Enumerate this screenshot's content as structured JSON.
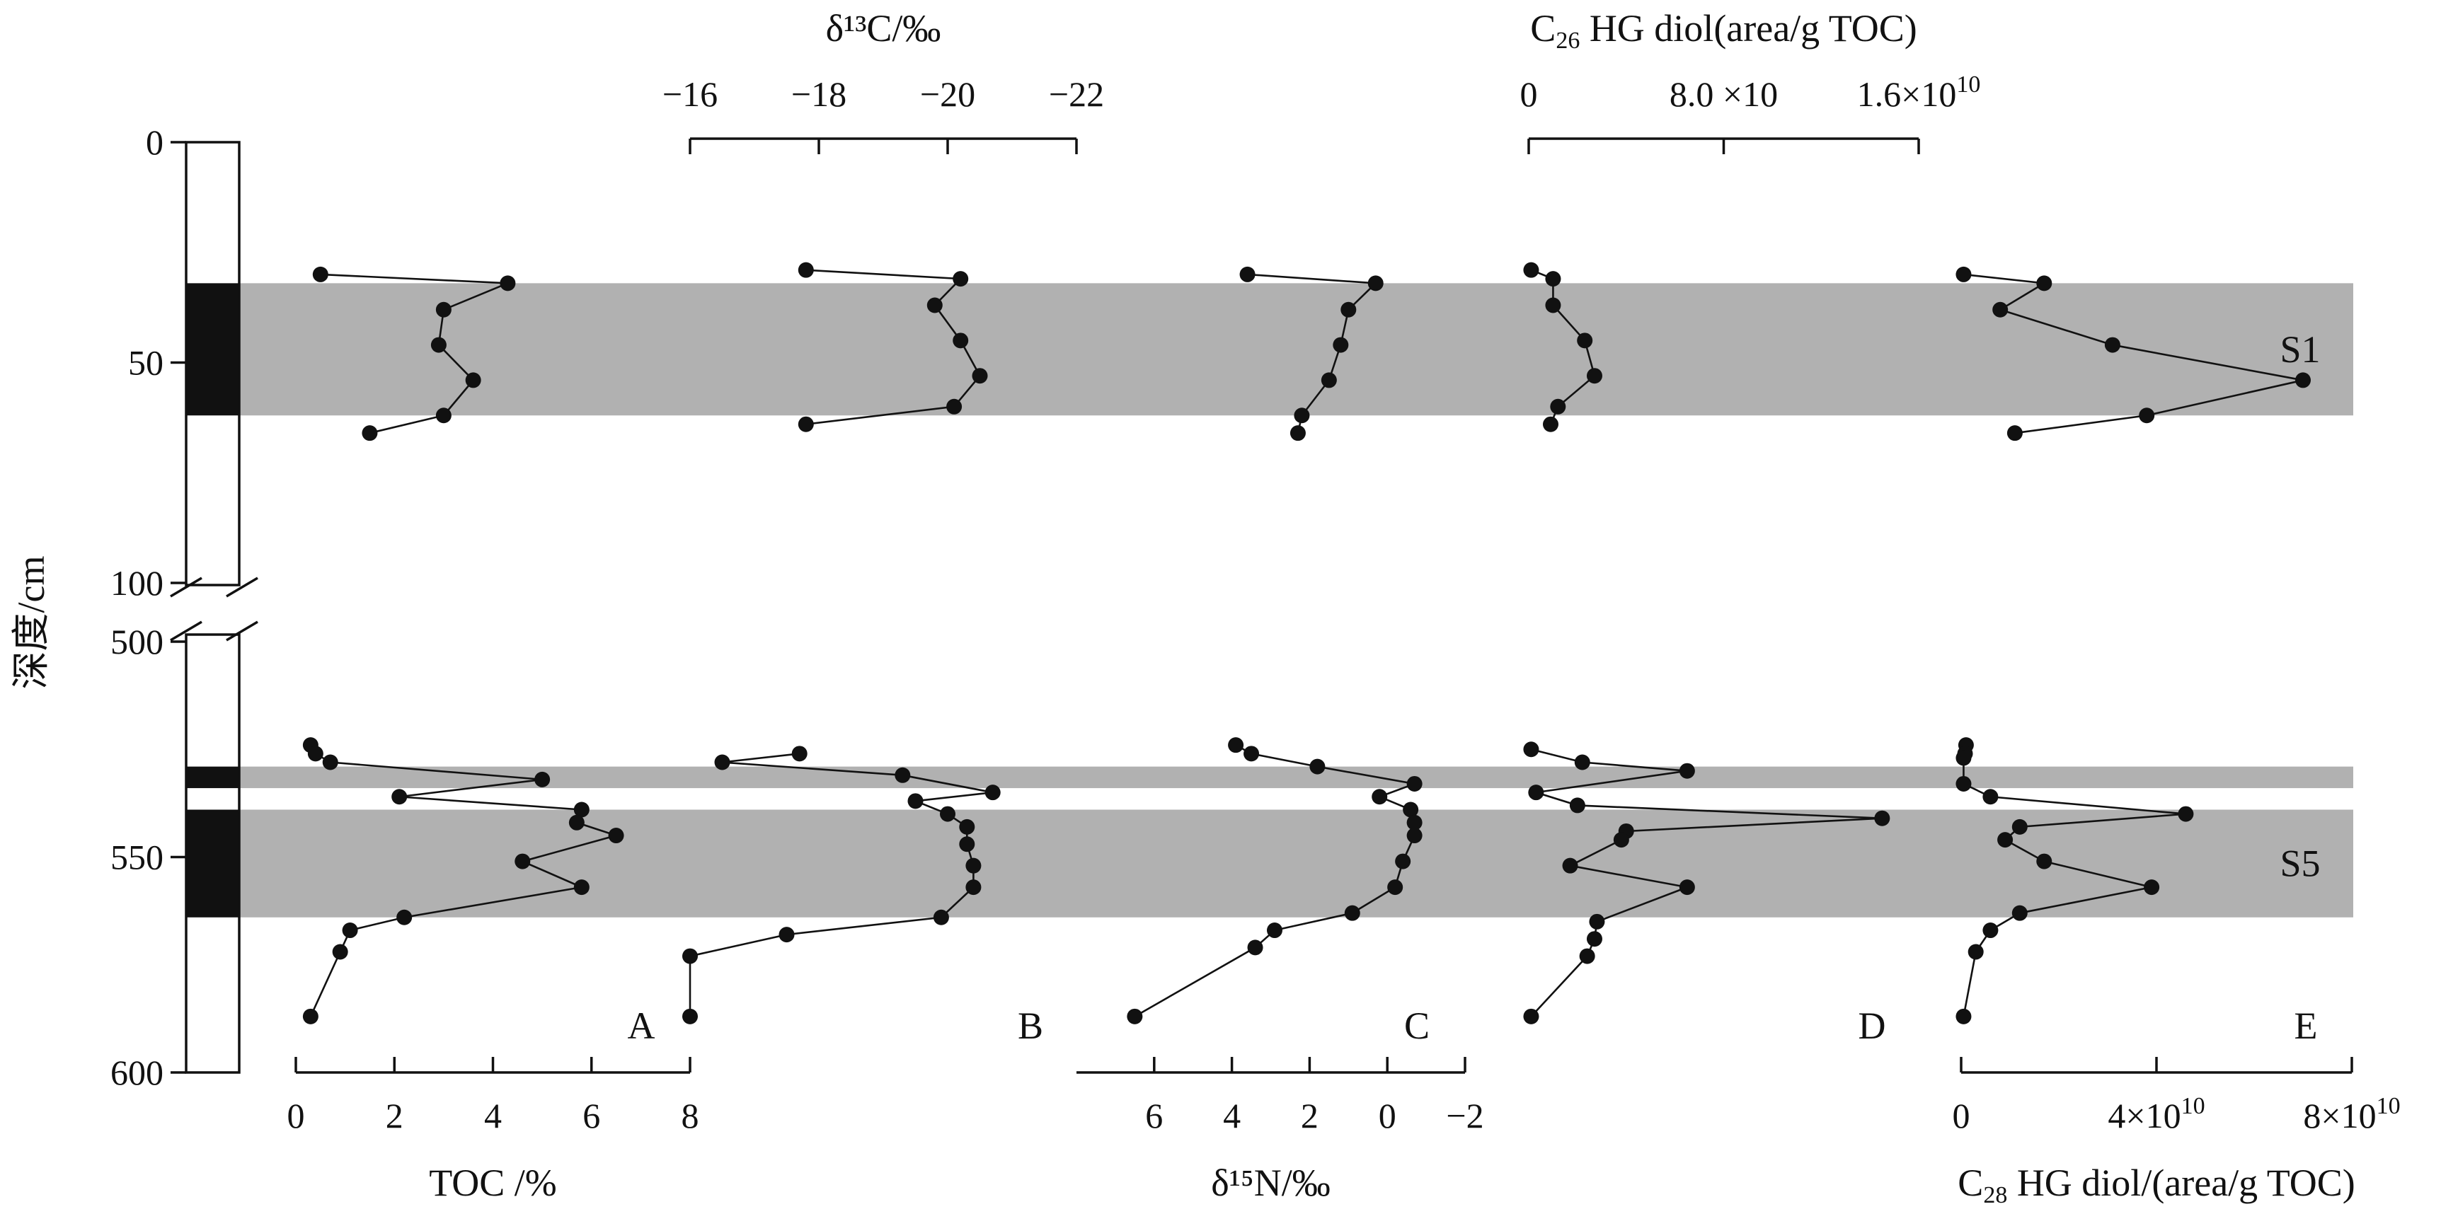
{
  "chart_data": {
    "type": "scatter",
    "variant": "multi-panel depth profile (line with markers)",
    "depth_axis": {
      "label": "深度/cm",
      "upper_segment": {
        "range": [
          0,
          100
        ],
        "ticks": [
          "0",
          "50",
          "100"
        ]
      },
      "lower_segment": {
        "range": [
          500,
          600
        ],
        "ticks": [
          "500",
          "550",
          "600"
        ]
      },
      "break_between": [
        100,
        500
      ]
    },
    "shaded_intervals": [
      {
        "label": "S1",
        "depth": [
          32,
          62
        ]
      },
      {
        "label": "",
        "depth": [
          529,
          534
        ]
      },
      {
        "label": "S5",
        "depth": [
          539,
          564
        ]
      }
    ],
    "lithology_column": {
      "black_units": [
        [
          32,
          62
        ],
        [
          529,
          534
        ],
        [
          539,
          564
        ]
      ]
    },
    "panels": [
      {
        "letter": "A",
        "variable": "TOC",
        "axis_title": "TOC /%",
        "axis_position": "bottom",
        "range": [
          0,
          8
        ],
        "reversed": false,
        "tick_labels": [
          "0",
          "2",
          "4",
          "6",
          "8"
        ],
        "upper": {
          "depth": [
            30,
            32,
            38,
            46,
            54,
            62,
            66
          ],
          "value": [
            0.5,
            4.3,
            3.0,
            2.9,
            3.6,
            3.0,
            1.5
          ]
        },
        "lower": {
          "depth": [
            524,
            526,
            528,
            532,
            536,
            539,
            542,
            545,
            551,
            557,
            564,
            567,
            572,
            587
          ],
          "value": [
            0.3,
            0.4,
            0.7,
            5.0,
            2.1,
            5.8,
            5.7,
            6.5,
            4.6,
            5.8,
            2.2,
            1.1,
            0.9,
            0.3
          ]
        }
      },
      {
        "letter": "B",
        "variable": "δ13C",
        "axis_title": "δ¹³C/‰",
        "axis_position": "top",
        "range": [
          -16,
          -22
        ],
        "reversed": true,
        "tick_labels": [
          "−16",
          "−18",
          "−20",
          "−22"
        ],
        "upper": {
          "depth": [
            29,
            31,
            37,
            45,
            53,
            60,
            64
          ],
          "value": [
            -17.8,
            -20.2,
            -19.8,
            -20.2,
            -20.5,
            -20.1,
            -17.8
          ]
        },
        "lower": {
          "depth": [
            526,
            528,
            531,
            535,
            537,
            540,
            543,
            547,
            552,
            557,
            564,
            568,
            573,
            587
          ],
          "value": [
            -17.7,
            -16.5,
            -19.3,
            -20.7,
            -19.5,
            -20.0,
            -20.3,
            -20.3,
            -20.4,
            -20.4,
            -19.9,
            -17.5,
            -16.0,
            -16.0
          ]
        }
      },
      {
        "letter": "C",
        "variable": "δ15N",
        "axis_title": "δ¹⁵N/‰",
        "axis_position": "bottom",
        "range": [
          8,
          -2
        ],
        "reversed": true,
        "tick_labels": [
          "6",
          "4",
          "2",
          "0",
          "−2"
        ],
        "upper": {
          "depth": [
            30,
            32,
            38,
            46,
            54,
            62,
            66
          ],
          "value": [
            3.6,
            0.3,
            1.0,
            1.2,
            1.5,
            2.2,
            2.3
          ]
        },
        "lower": {
          "depth": [
            524,
            526,
            529,
            533,
            536,
            539,
            542,
            545,
            551,
            557,
            563,
            567,
            571,
            587
          ],
          "value": [
            3.9,
            3.5,
            1.8,
            -0.7,
            0.2,
            -0.6,
            -0.7,
            -0.7,
            -0.4,
            -0.2,
            0.9,
            2.9,
            3.4,
            6.5
          ]
        }
      },
      {
        "letter": "D",
        "variable": "C26 HG diol",
        "axis_title_parts": [
          "C",
          "26",
          " HG diol(area/g TOC)"
        ],
        "axis_position": "top",
        "range": [
          0,
          16000000000.0
        ],
        "reversed": false,
        "tick_labels": [
          "0",
          "8.0 ×10",
          "1.6×10"
        ],
        "tick_exponents": [
          "",
          "",
          "10"
        ],
        "upper": {
          "depth": [
            29,
            31,
            37,
            45,
            53,
            60,
            64
          ],
          "value": [
            100000000.0,
            1000000000.0,
            1000000000.0,
            2300000000.0,
            2700000000.0,
            1200000000.0,
            900000000.0
          ]
        },
        "lower": {
          "depth": [
            525,
            528,
            530,
            535,
            538,
            541,
            544,
            546,
            552,
            557,
            565,
            569,
            573,
            587
          ],
          "value": [
            100000000.0,
            2200000000.0,
            6500000000.0,
            300000000.0,
            2000000000.0,
            14500000000.0,
            4000000000.0,
            3800000000.0,
            1700000000.0,
            6500000000.0,
            2800000000.0,
            2700000000.0,
            2400000000.0,
            100000000.0
          ]
        }
      },
      {
        "letter": "E",
        "variable": "C28 HG diol",
        "axis_title_parts": [
          "C",
          "28",
          " HG diol/(area/g TOC)"
        ],
        "axis_position": "bottom",
        "range": [
          0,
          80000000000.0
        ],
        "reversed": false,
        "tick_labels": [
          "0",
          "4×10",
          "8×10"
        ],
        "tick_exponents": [
          "",
          "10",
          "10"
        ],
        "upper": {
          "depth": [
            30,
            32,
            38,
            46,
            54,
            62,
            66
          ],
          "value": [
            500000000.0,
            17000000000.0,
            8000000000.0,
            31000000000.0,
            70000000000.0,
            38000000000.0,
            11000000000.0
          ]
        },
        "lower": {
          "depth": [
            524,
            526,
            527,
            533,
            536,
            540,
            543,
            546,
            551,
            557,
            563,
            567,
            572,
            587
          ],
          "value": [
            1000000000.0,
            800000000.0,
            500000000.0,
            500000000.0,
            6000000000.0,
            46000000000.0,
            12000000000.0,
            9000000000.0,
            17000000000.0,
            39000000000.0,
            12000000000.0,
            6000000000.0,
            3000000000.0,
            500000000.0
          ]
        }
      }
    ]
  }
}
